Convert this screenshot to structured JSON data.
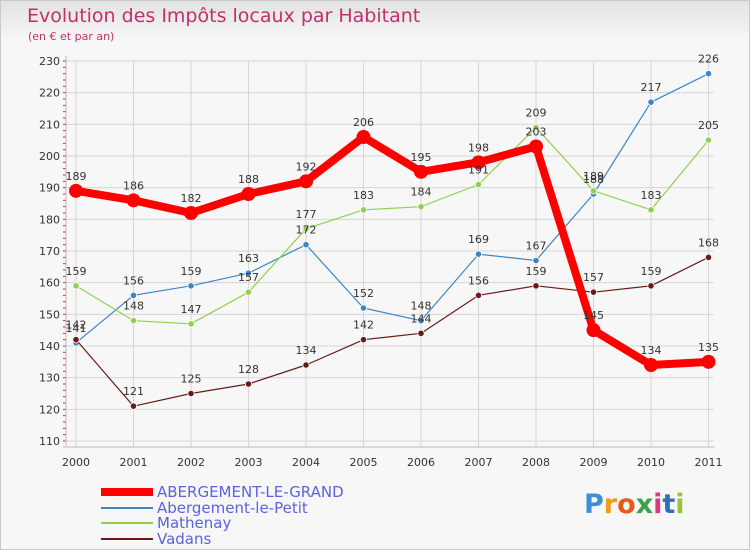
{
  "chart_data": {
    "type": "line",
    "title": "Evolution des Impôts locaux par Habitant",
    "subtitle": "(en € et par an)",
    "xlabel": "",
    "ylabel": "",
    "ylim": [
      110,
      230
    ],
    "yticks": [
      110,
      120,
      130,
      140,
      150,
      160,
      170,
      180,
      190,
      200,
      210,
      220,
      230
    ],
    "categories": [
      "2000",
      "2001",
      "2002",
      "2003",
      "2004",
      "2005",
      "2006",
      "2007",
      "2008",
      "2009",
      "2010",
      "2011"
    ],
    "grid": true,
    "legend_position": "bottom-left",
    "series": [
      {
        "name": "ABERGEMENT-LE-GRAND",
        "color": "#ff0000",
        "values": [
          189,
          186,
          182,
          188,
          192,
          206,
          195,
          198,
          203,
          145,
          134,
          135
        ]
      },
      {
        "name": "Abergement-le-Petit",
        "color": "#3d85c6",
        "values": [
          141,
          156,
          159,
          163,
          172,
          152,
          148,
          169,
          167,
          188,
          217,
          226
        ]
      },
      {
        "name": "Mathenay",
        "color": "#8fd14f",
        "values": [
          159,
          148,
          147,
          157,
          177,
          183,
          184,
          191,
          209,
          189,
          183,
          205
        ]
      },
      {
        "name": "Vadans",
        "color": "#6b1a1a",
        "values": [
          142,
          121,
          125,
          128,
          134,
          142,
          144,
          156,
          159,
          157,
          159,
          168
        ]
      }
    ]
  },
  "brand": {
    "letters": [
      "P",
      "r",
      "o",
      "x",
      "i",
      "t",
      "i"
    ],
    "colors": [
      "#3a8fd8",
      "#f39a1e",
      "#e85a1c",
      "#3aa34a",
      "#d93a7a",
      "#2f6fb8",
      "#9ac43a"
    ]
  }
}
